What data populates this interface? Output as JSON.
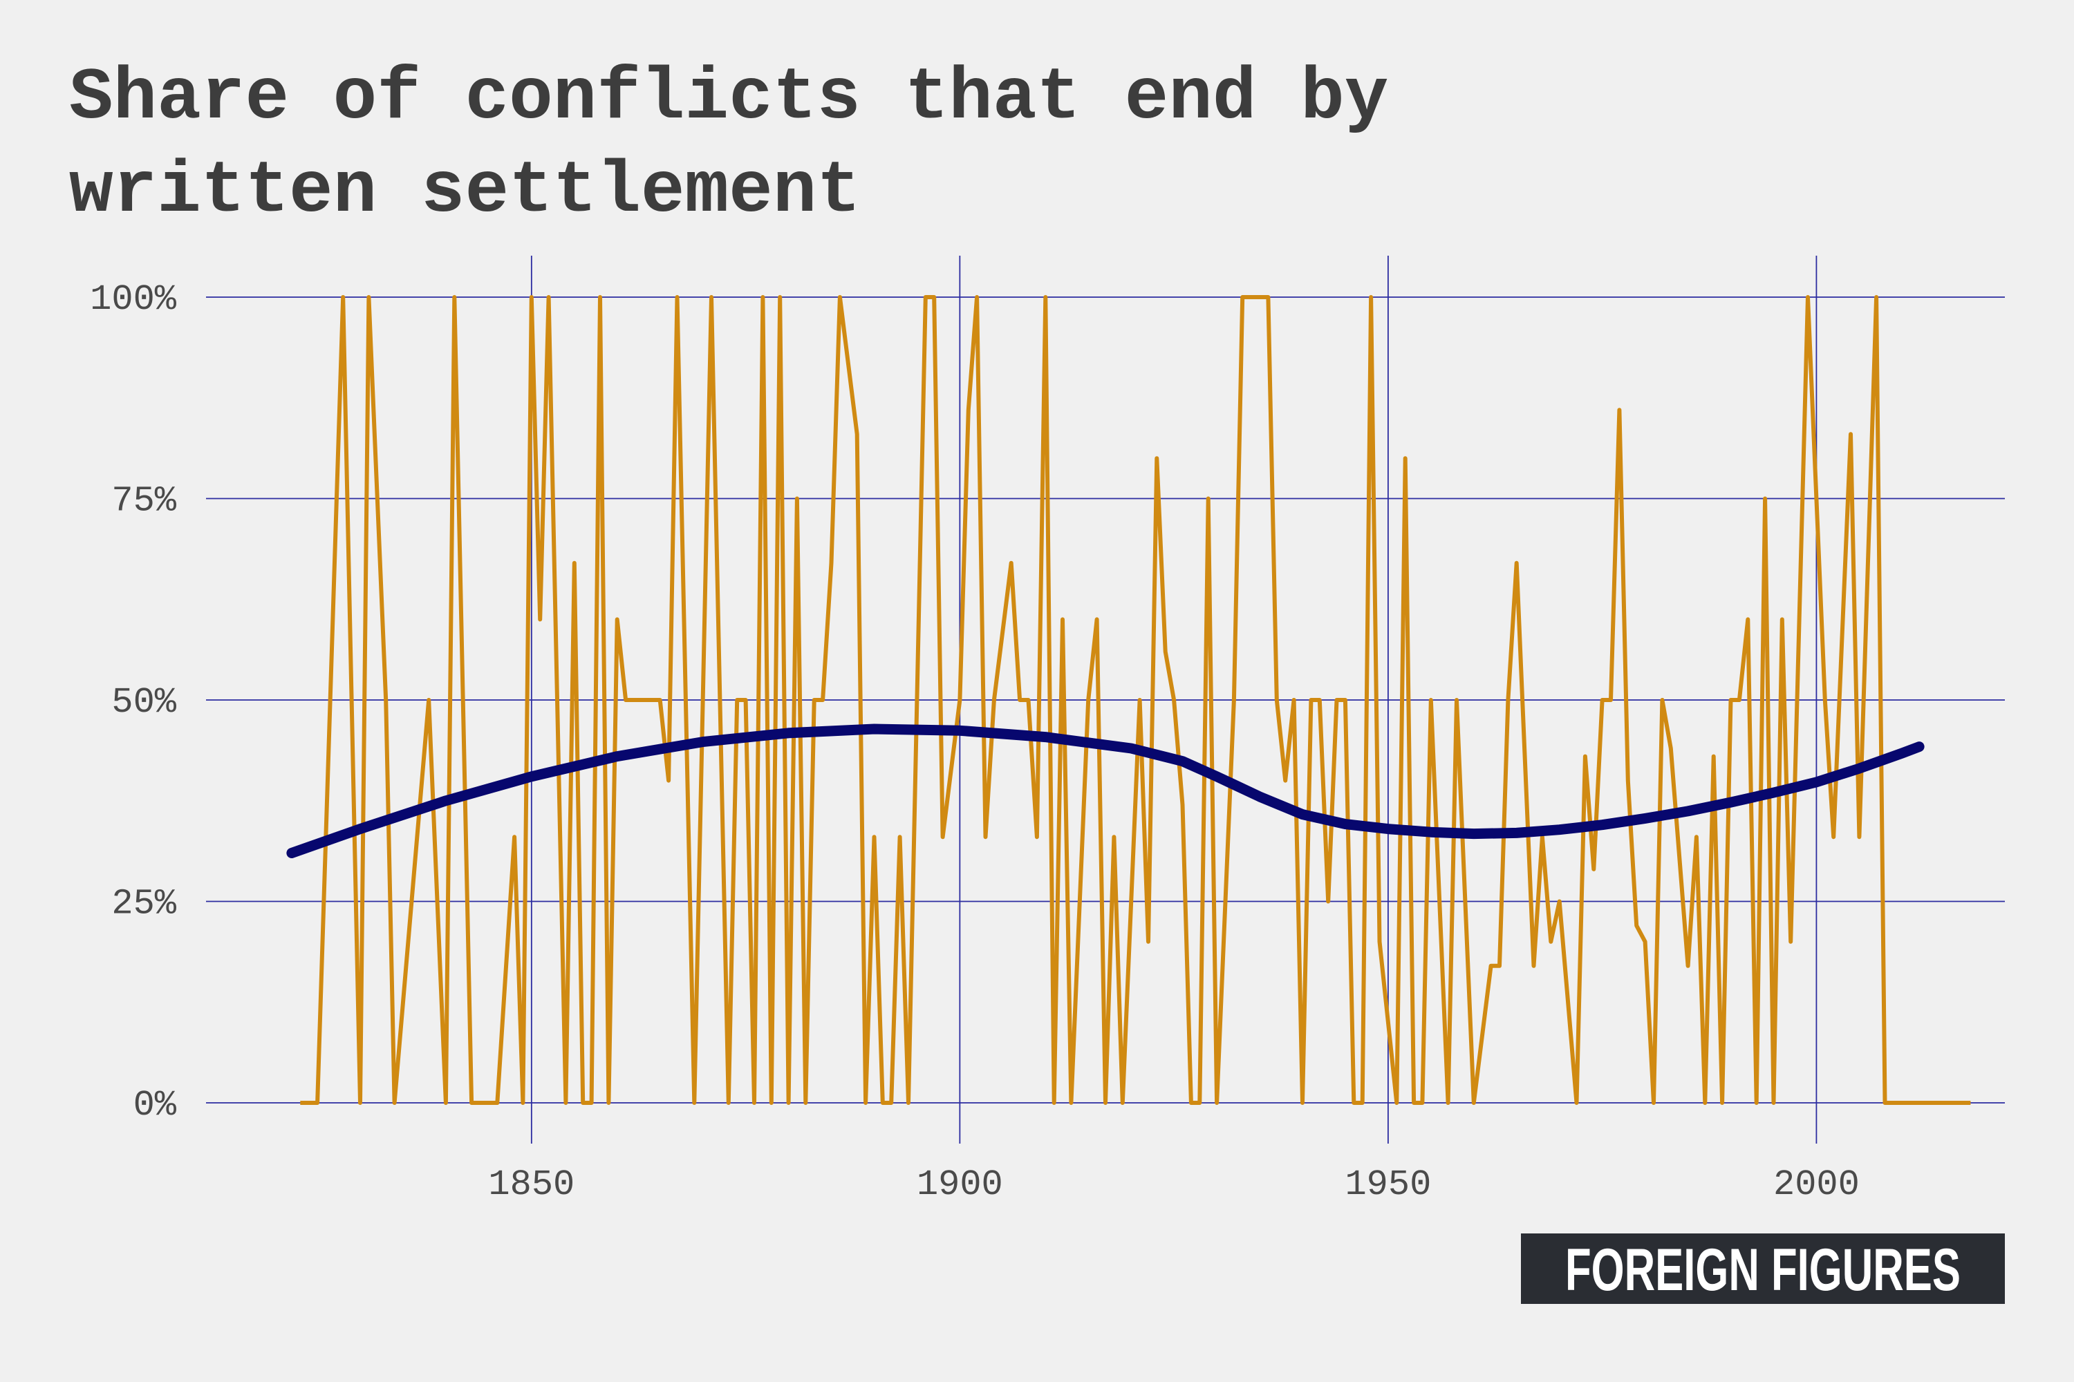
{
  "chart_data": {
    "type": "line",
    "title_lines": [
      "Share of conflicts that end by",
      "written settlement"
    ],
    "xlabel": "",
    "ylabel": "",
    "xlim": [
      1812,
      2022
    ],
    "ylim": [
      0,
      100
    ],
    "x_ticks": [
      {
        "value": 1850,
        "label": "1850"
      },
      {
        "value": 1900,
        "label": "1900"
      },
      {
        "value": 1950,
        "label": "1950"
      },
      {
        "value": 2000,
        "label": "2000"
      }
    ],
    "y_ticks": [
      {
        "value": 0,
        "label": "0%"
      },
      {
        "value": 25,
        "label": "25%"
      },
      {
        "value": 50,
        "label": "50%"
      },
      {
        "value": 75,
        "label": "75%"
      },
      {
        "value": 100,
        "label": "100%"
      }
    ],
    "grid": true,
    "legend": "none",
    "series": [
      {
        "color": "#d08a12",
        "points": [
          [
            1823,
            0
          ],
          [
            1825,
            0
          ],
          [
            1828,
            100
          ],
          [
            1830,
            0
          ],
          [
            1831,
            100
          ],
          [
            1833,
            50
          ],
          [
            1834,
            0
          ],
          [
            1838,
            50
          ],
          [
            1840,
            0
          ],
          [
            1841,
            100
          ],
          [
            1843,
            0
          ],
          [
            1846,
            0
          ],
          [
            1848,
            33
          ],
          [
            1849,
            0
          ],
          [
            1850,
            100
          ],
          [
            1851,
            60
          ],
          [
            1852,
            100
          ],
          [
            1854,
            0
          ],
          [
            1855,
            67
          ],
          [
            1856,
            0
          ],
          [
            1857,
            0
          ],
          [
            1858,
            100
          ],
          [
            1859,
            0
          ],
          [
            1860,
            60
          ],
          [
            1861,
            50
          ],
          [
            1865,
            50
          ],
          [
            1866,
            40
          ],
          [
            1867,
            100
          ],
          [
            1869,
            0
          ],
          [
            1871,
            100
          ],
          [
            1873,
            0
          ],
          [
            1874,
            50
          ],
          [
            1875,
            50
          ],
          [
            1876,
            0
          ],
          [
            1877,
            100
          ],
          [
            1878,
            0
          ],
          [
            1879,
            100
          ],
          [
            1880,
            0
          ],
          [
            1881,
            75
          ],
          [
            1882,
            0
          ],
          [
            1883,
            50
          ],
          [
            1884,
            50
          ],
          [
            1885,
            67
          ],
          [
            1886,
            100
          ],
          [
            1888,
            83
          ],
          [
            1889,
            0
          ],
          [
            1890,
            33
          ],
          [
            1891,
            0
          ],
          [
            1892,
            0
          ],
          [
            1893,
            33
          ],
          [
            1894,
            0
          ],
          [
            1896,
            100
          ],
          [
            1897,
            100
          ],
          [
            1898,
            33
          ],
          [
            1900,
            50
          ],
          [
            1901,
            86
          ],
          [
            1902,
            100
          ],
          [
            1903,
            33
          ],
          [
            1904,
            50
          ],
          [
            1906,
            67
          ],
          [
            1907,
            50
          ],
          [
            1908,
            50
          ],
          [
            1909,
            33
          ],
          [
            1910,
            100
          ],
          [
            1911,
            0
          ],
          [
            1912,
            60
          ],
          [
            1913,
            0
          ],
          [
            1915,
            50
          ],
          [
            1916,
            60
          ],
          [
            1917,
            0
          ],
          [
            1918,
            33
          ],
          [
            1919,
            0
          ],
          [
            1921,
            50
          ],
          [
            1922,
            20
          ],
          [
            1923,
            80
          ],
          [
            1924,
            56
          ],
          [
            1925,
            50
          ],
          [
            1926,
            37
          ],
          [
            1927,
            0
          ],
          [
            1928,
            0
          ],
          [
            1929,
            75
          ],
          [
            1930,
            0
          ],
          [
            1932,
            50
          ],
          [
            1933,
            100
          ],
          [
            1936,
            100
          ],
          [
            1937,
            50
          ],
          [
            1938,
            40
          ],
          [
            1939,
            50
          ],
          [
            1940,
            0
          ],
          [
            1941,
            50
          ],
          [
            1942,
            50
          ],
          [
            1943,
            25
          ],
          [
            1944,
            50
          ],
          [
            1945,
            50
          ],
          [
            1946,
            0
          ],
          [
            1947,
            0
          ],
          [
            1948,
            100
          ],
          [
            1949,
            20
          ],
          [
            1951,
            0
          ],
          [
            1952,
            80
          ],
          [
            1953,
            0
          ],
          [
            1954,
            0
          ],
          [
            1955,
            50
          ],
          [
            1957,
            0
          ],
          [
            1958,
            50
          ],
          [
            1960,
            0
          ],
          [
            1962,
            17
          ],
          [
            1963,
            17
          ],
          [
            1964,
            50
          ],
          [
            1965,
            67
          ],
          [
            1967,
            17
          ],
          [
            1968,
            33
          ],
          [
            1969,
            20
          ],
          [
            1970,
            25
          ],
          [
            1972,
            0
          ],
          [
            1973,
            43
          ],
          [
            1974,
            29
          ],
          [
            1975,
            50
          ],
          [
            1976,
            50
          ],
          [
            1977,
            86
          ],
          [
            1978,
            40
          ],
          [
            1979,
            22
          ],
          [
            1980,
            20
          ],
          [
            1981,
            0
          ],
          [
            1982,
            50
          ],
          [
            1983,
            44
          ],
          [
            1985,
            17
          ],
          [
            1986,
            33
          ],
          [
            1987,
            0
          ],
          [
            1988,
            43
          ],
          [
            1989,
            0
          ],
          [
            1990,
            50
          ],
          [
            1991,
            50
          ],
          [
            1992,
            60
          ],
          [
            1993,
            0
          ],
          [
            1994,
            75
          ],
          [
            1995,
            0
          ],
          [
            1996,
            60
          ],
          [
            1997,
            20
          ],
          [
            1999,
            100
          ],
          [
            2001,
            50
          ],
          [
            2002,
            33
          ],
          [
            2004,
            83
          ],
          [
            2005,
            33
          ],
          [
            2007,
            100
          ],
          [
            2008,
            0
          ],
          [
            2018,
            0
          ]
        ]
      },
      {
        "color": "#07076e",
        "points": [
          [
            1822,
            31
          ],
          [
            1830,
            34
          ],
          [
            1840,
            37.5
          ],
          [
            1850,
            40.5
          ],
          [
            1860,
            43
          ],
          [
            1870,
            44.8
          ],
          [
            1880,
            45.9
          ],
          [
            1890,
            46.4
          ],
          [
            1900,
            46.2
          ],
          [
            1910,
            45.4
          ],
          [
            1920,
            44
          ],
          [
            1926,
            42.4
          ],
          [
            1930,
            40.5
          ],
          [
            1935,
            38
          ],
          [
            1940,
            35.8
          ],
          [
            1945,
            34.6
          ],
          [
            1950,
            34
          ],
          [
            1955,
            33.6
          ],
          [
            1960,
            33.4
          ],
          [
            1965,
            33.5
          ],
          [
            1970,
            33.9
          ],
          [
            1975,
            34.5
          ],
          [
            1980,
            35.3
          ],
          [
            1985,
            36.2
          ],
          [
            1990,
            37.3
          ],
          [
            1995,
            38.5
          ],
          [
            2000,
            39.8
          ],
          [
            2005,
            41.5
          ],
          [
            2010,
            43.4
          ],
          [
            2012,
            44.2
          ]
        ]
      }
    ]
  },
  "branding": {
    "logo_text": "FOREIGN FIGURES",
    "logo_bg": "#2a2d33",
    "logo_fg": "#ffffff"
  }
}
